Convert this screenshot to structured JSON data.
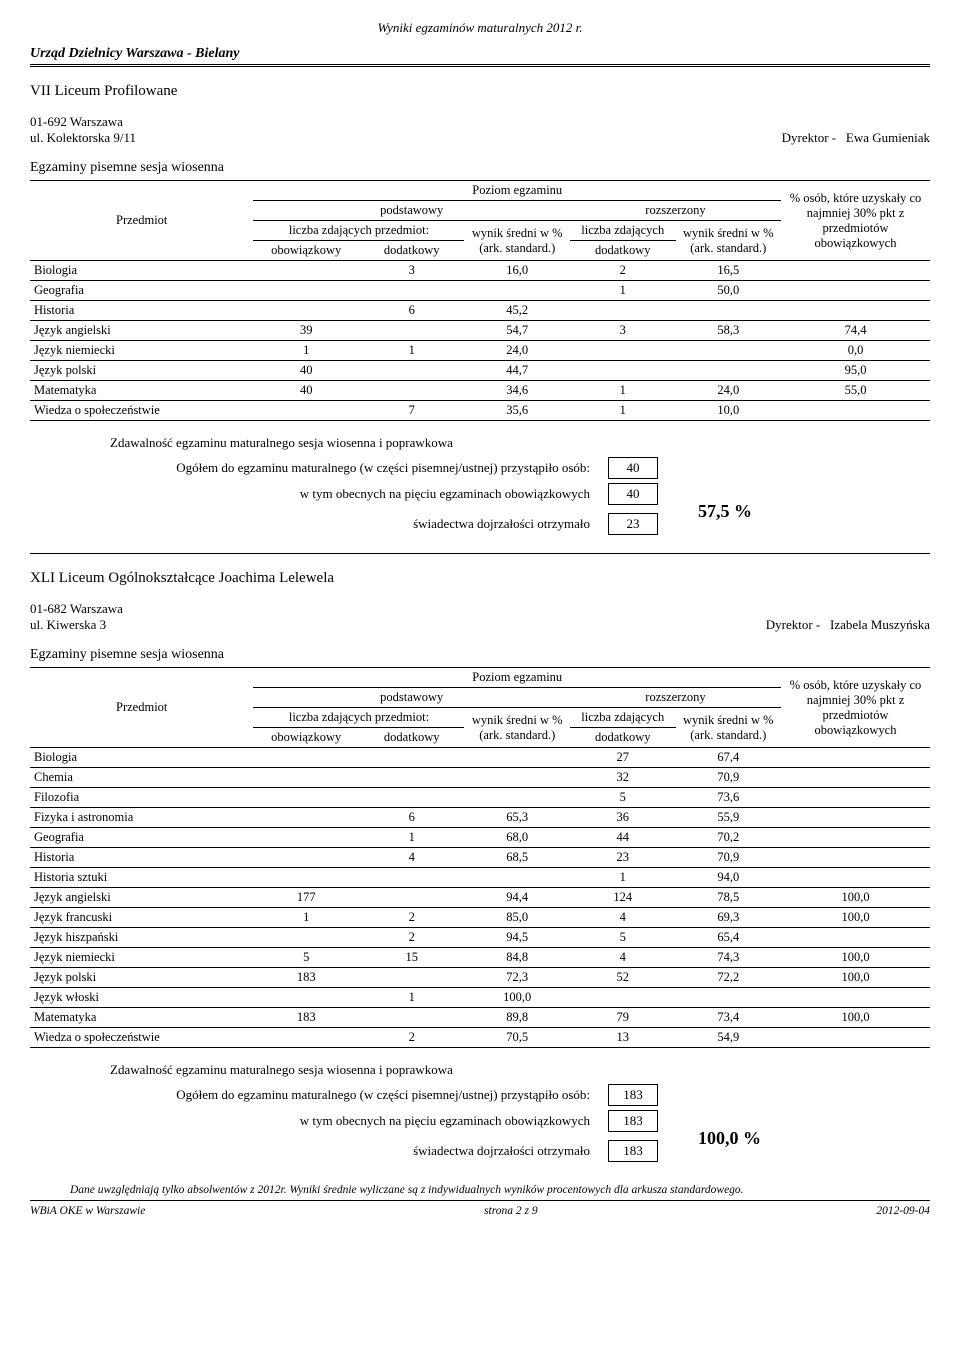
{
  "doc_title": "Wyniki egzaminów maturalnych 2012 r.",
  "urzad": "Urząd Dzielnicy Warszawa - Bielany",
  "hdr": {
    "poziom": "Poziom egzaminu",
    "przedmiot": "Przedmiot",
    "podstawowy": "podstawowy",
    "rozszerzony": "rozszerzony",
    "liczba_zd_przedmiot": "liczba zdających przedmiot:",
    "obowiazkowy": "obowiązkowy",
    "dodatkowy": "dodatkowy",
    "wynik_sredni": "wynik średni w %",
    "ark": "(ark. standard.)",
    "liczba_zd": "liczba zdających",
    "osob": "% osób, które uzyskały co najmniej 30% pkt z przedmiotów obowiązkowych"
  },
  "sch1": {
    "name": "VII Liceum Profilowane",
    "addr1": "01-692 Warszawa",
    "addr2": "ul. Kolektorska 9/11",
    "dyrektor_label": "Dyrektor -",
    "dyrektor": "Ewa Gumieniak",
    "section": "Egzaminy pisemne sesja wiosenna",
    "rows": [
      {
        "n": "Biologia",
        "ob": "",
        "dod": "3",
        "ws": "16,0",
        "lz": "2",
        "ws2": "16,5",
        "os": ""
      },
      {
        "n": "Geografia",
        "ob": "",
        "dod": "",
        "ws": "",
        "lz": "1",
        "ws2": "50,0",
        "os": ""
      },
      {
        "n": "Historia",
        "ob": "",
        "dod": "6",
        "ws": "45,2",
        "lz": "",
        "ws2": "",
        "os": ""
      },
      {
        "n": "Język angielski",
        "ob": "39",
        "dod": "",
        "ws": "54,7",
        "lz": "3",
        "ws2": "58,3",
        "os": "74,4"
      },
      {
        "n": "Język niemiecki",
        "ob": "1",
        "dod": "1",
        "ws": "24,0",
        "lz": "",
        "ws2": "",
        "os": "0,0"
      },
      {
        "n": "Język polski",
        "ob": "40",
        "dod": "",
        "ws": "44,7",
        "lz": "",
        "ws2": "",
        "os": "95,0"
      },
      {
        "n": "Matematyka",
        "ob": "40",
        "dod": "",
        "ws": "34,6",
        "lz": "1",
        "ws2": "24,0",
        "os": "55,0"
      },
      {
        "n": "Wiedza o społeczeństwie",
        "ob": "",
        "dod": "7",
        "ws": "35,6",
        "lz": "1",
        "ws2": "10,0",
        "os": ""
      }
    ],
    "sum": {
      "zd": "Zdawalność egzaminu maturalnego sesja wiosenna i poprawkowa",
      "ogolem": "Ogółem do egzaminu maturalnego (w części pisemnej/ustnej) przystąpiło osób:",
      "wtym": "w tym obecnych na pięciu egzaminach obowiązkowych",
      "swiad": "świadectwa dojrzałości otrzymało",
      "v1": "40",
      "v2": "40",
      "v3": "23",
      "pct": "57,5 %"
    }
  },
  "sch2": {
    "name": "XLI Liceum Ogólnokształcące Joachima Lelewela",
    "addr1": "01-682 Warszawa",
    "addr2": "ul. Kiwerska 3",
    "dyrektor_label": "Dyrektor -",
    "dyrektor": "Izabela Muszyńska",
    "section": "Egzaminy pisemne sesja wiosenna",
    "rows": [
      {
        "n": "Biologia",
        "ob": "",
        "dod": "",
        "ws": "",
        "lz": "27",
        "ws2": "67,4",
        "os": ""
      },
      {
        "n": "Chemia",
        "ob": "",
        "dod": "",
        "ws": "",
        "lz": "32",
        "ws2": "70,9",
        "os": ""
      },
      {
        "n": "Filozofia",
        "ob": "",
        "dod": "",
        "ws": "",
        "lz": "5",
        "ws2": "73,6",
        "os": ""
      },
      {
        "n": "Fizyka i astronomia",
        "ob": "",
        "dod": "6",
        "ws": "65,3",
        "lz": "36",
        "ws2": "55,9",
        "os": ""
      },
      {
        "n": "Geografia",
        "ob": "",
        "dod": "1",
        "ws": "68,0",
        "lz": "44",
        "ws2": "70,2",
        "os": ""
      },
      {
        "n": "Historia",
        "ob": "",
        "dod": "4",
        "ws": "68,5",
        "lz": "23",
        "ws2": "70,9",
        "os": ""
      },
      {
        "n": "Historia sztuki",
        "ob": "",
        "dod": "",
        "ws": "",
        "lz": "1",
        "ws2": "94,0",
        "os": ""
      },
      {
        "n": "Język angielski",
        "ob": "177",
        "dod": "",
        "ws": "94,4",
        "lz": "124",
        "ws2": "78,5",
        "os": "100,0"
      },
      {
        "n": "Język francuski",
        "ob": "1",
        "dod": "2",
        "ws": "85,0",
        "lz": "4",
        "ws2": "69,3",
        "os": "100,0"
      },
      {
        "n": "Język hiszpański",
        "ob": "",
        "dod": "2",
        "ws": "94,5",
        "lz": "5",
        "ws2": "65,4",
        "os": ""
      },
      {
        "n": "Język niemiecki",
        "ob": "5",
        "dod": "15",
        "ws": "84,8",
        "lz": "4",
        "ws2": "74,3",
        "os": "100,0"
      },
      {
        "n": "Język polski",
        "ob": "183",
        "dod": "",
        "ws": "72,3",
        "lz": "52",
        "ws2": "72,2",
        "os": "100,0"
      },
      {
        "n": "Język włoski",
        "ob": "",
        "dod": "1",
        "ws": "100,0",
        "lz": "",
        "ws2": "",
        "os": ""
      },
      {
        "n": "Matematyka",
        "ob": "183",
        "dod": "",
        "ws": "89,8",
        "lz": "79",
        "ws2": "73,4",
        "os": "100,0"
      },
      {
        "n": "Wiedza o społeczeństwie",
        "ob": "",
        "dod": "2",
        "ws": "70,5",
        "lz": "13",
        "ws2": "54,9",
        "os": ""
      }
    ],
    "sum": {
      "zd": "Zdawalność egzaminu maturalnego sesja wiosenna i poprawkowa",
      "ogolem": "Ogółem do egzaminu maturalnego (w części pisemnej/ustnej) przystąpiło osób:",
      "wtym": "w tym obecnych na pięciu egzaminach obowiązkowych",
      "swiad": "świadectwa dojrzałości otrzymało",
      "v1": "183",
      "v2": "183",
      "v3": "183",
      "pct": "100,0 %"
    }
  },
  "footer": {
    "note": "Dane uwzględniają tylko absolwentów z 2012r. Wyniki średnie wyliczane są z indywidualnych wyników procentowych dla arkusza standardowego.",
    "left": "WBiA OKE w Warszawie",
    "mid": "strona 2 z 9",
    "right": "2012-09-04"
  }
}
